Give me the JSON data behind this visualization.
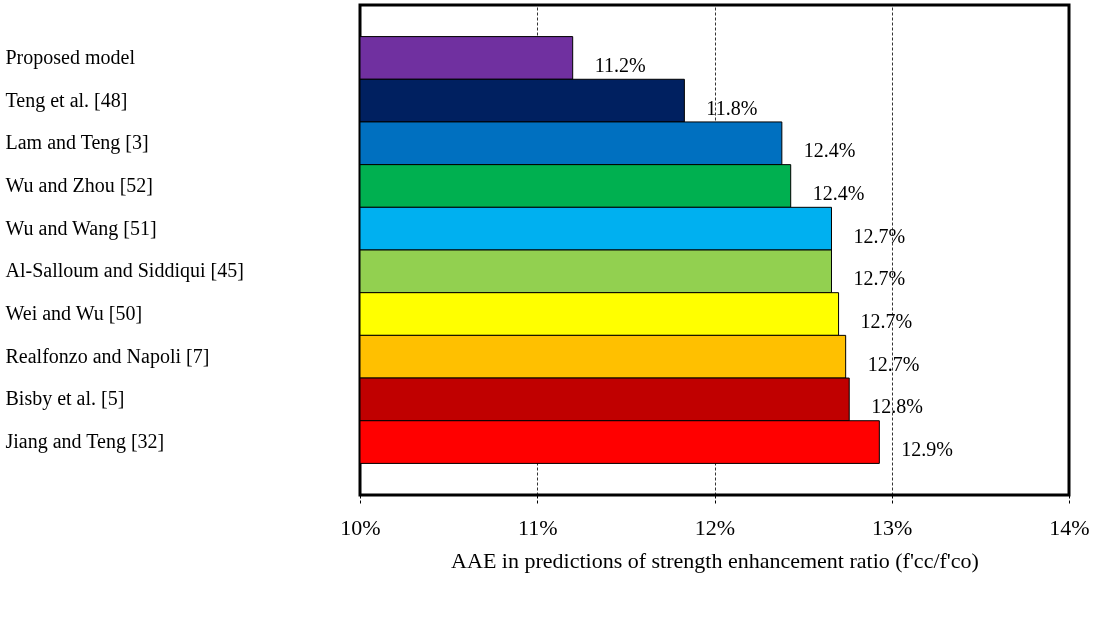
{
  "chart_data": {
    "type": "bar",
    "orientation": "horizontal",
    "xlabel": "AAE in predictions of strength enhancement ratio (f'cc/f'co)",
    "categories": [
      "Proposed model",
      "Teng et al. [48]",
      "Lam and Teng [3]",
      "Wu and Zhou [52]",
      "Wu and Wang [51]",
      "Al-Salloum and Siddiqui [45]",
      "Wei and Wu [50]",
      "Realfonzo and Napoli [7]",
      "Bisby et al. [5]",
      "Jiang and Teng [32]"
    ],
    "values": [
      11.2,
      11.83,
      12.38,
      12.43,
      12.66,
      12.66,
      12.7,
      12.74,
      12.76,
      12.93
    ],
    "value_labels": [
      "11.2%",
      "11.8%",
      "12.4%",
      "12.4%",
      "12.7%",
      "12.7%",
      "12.7%",
      "12.7%",
      "12.8%",
      "12.9%"
    ],
    "colors": [
      "#7030a0",
      "#002060",
      "#0070c0",
      "#00b050",
      "#00b0f0",
      "#92d050",
      "#ffff00",
      "#ffc000",
      "#c00000",
      "#ff0000"
    ],
    "xlim": [
      10,
      14
    ],
    "xticks": [
      {
        "value": 10,
        "label": "10%"
      },
      {
        "value": 11,
        "label": "11%"
      },
      {
        "value": 12,
        "label": "12%"
      },
      {
        "value": 13,
        "label": "13%"
      },
      {
        "value": 14,
        "label": "14%"
      }
    ],
    "grid": "x"
  }
}
